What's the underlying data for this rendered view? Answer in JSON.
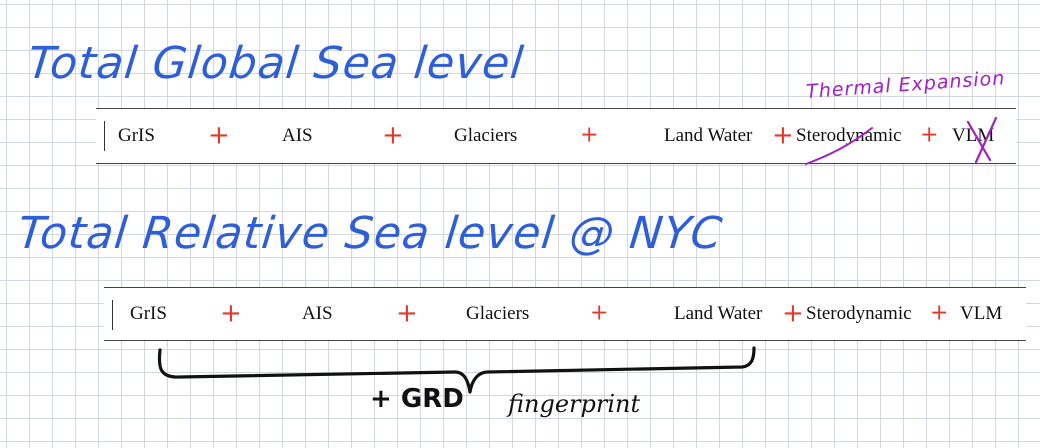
{
  "colors": {
    "handwriting_blue": "#2f5fd6",
    "annotation_purple": "#a020c8",
    "plus_red": "#e23a2a"
  },
  "titles": {
    "global": "Total Global Sea level",
    "relative": "Total Relative Sea level @ NYC",
    "thermal_note": "Thermal Expansion"
  },
  "table_global": {
    "cells": [
      "GrIS",
      "AIS",
      "Glaciers",
      "Land Water",
      "Sterodynamic",
      "VLM"
    ],
    "struck": [
      "Sterodynamic",
      "VLM"
    ]
  },
  "table_relative": {
    "cells": [
      "GrIS",
      "AIS",
      "Glaciers",
      "Land Water",
      "Sterodynamic",
      "VLM"
    ]
  },
  "annotation": {
    "brace_span": "GrIS + AIS + Glaciers + Land Water",
    "plus": "+",
    "grd_label": "GRD",
    "fingerprint": "fingerprint"
  },
  "operator": "+"
}
